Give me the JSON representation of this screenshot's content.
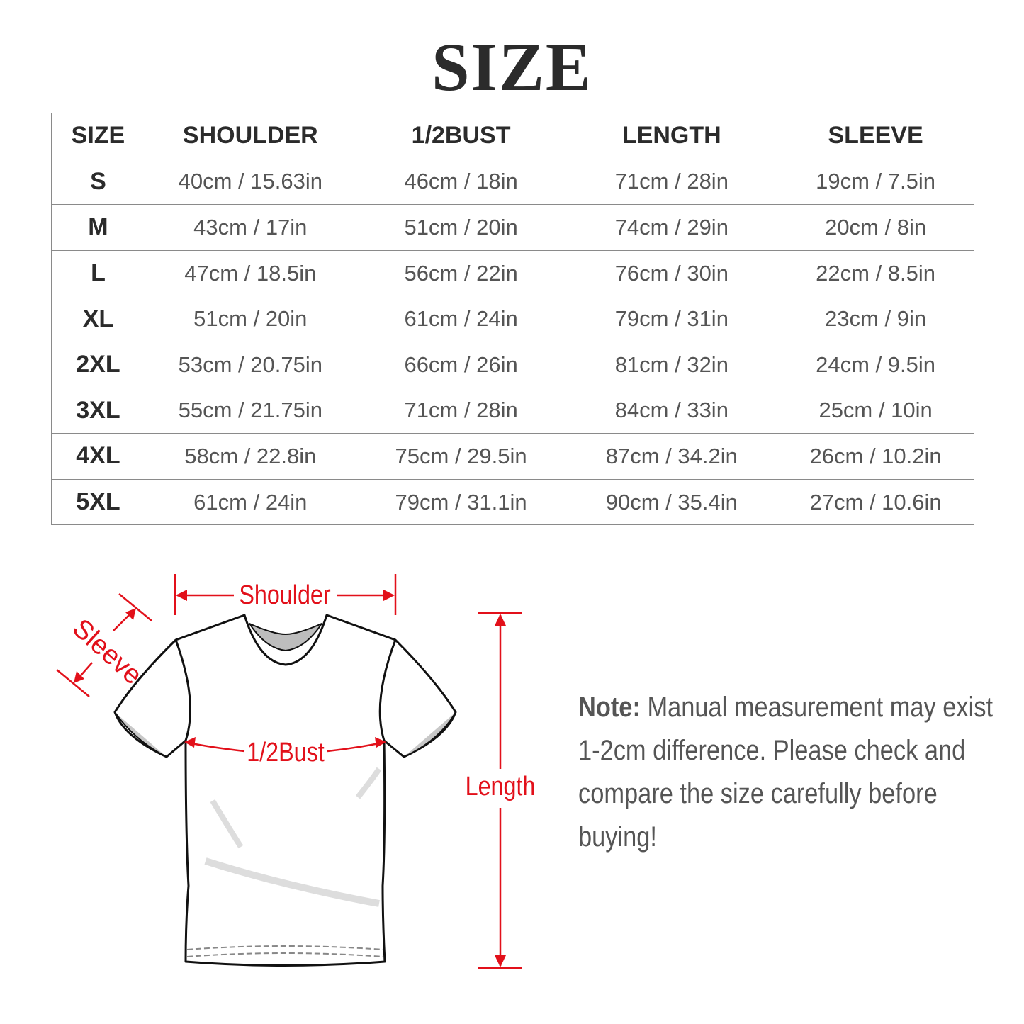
{
  "title": "SIZE",
  "table": {
    "headers": [
      "SIZE",
      "SHOULDER",
      "1/2BUST",
      "LENGTH",
      "SLEEVE"
    ],
    "rows": [
      [
        "S",
        "40cm / 15.63in",
        "46cm / 18in",
        "71cm / 28in",
        "19cm / 7.5in"
      ],
      [
        "M",
        "43cm / 17in",
        "51cm / 20in",
        "74cm / 29in",
        "20cm / 8in"
      ],
      [
        "L",
        "47cm / 18.5in",
        "56cm / 22in",
        "76cm / 30in",
        "22cm / 8.5in"
      ],
      [
        "XL",
        "51cm / 20in",
        "61cm / 24in",
        "79cm / 31in",
        "23cm / 9in"
      ],
      [
        "2XL",
        "53cm / 20.75in",
        "66cm / 26in",
        "81cm / 32in",
        "24cm / 9.5in"
      ],
      [
        "3XL",
        "55cm / 21.75in",
        "71cm / 28in",
        "84cm / 33in",
        "25cm / 10in"
      ],
      [
        "4XL",
        "58cm / 22.8in",
        "75cm / 29.5in",
        "87cm / 34.2in",
        "26cm / 10.2in"
      ],
      [
        "5XL",
        "61cm / 24in",
        "79cm / 31.1in",
        "90cm / 35.4in",
        "27cm / 10.6in"
      ]
    ]
  },
  "diagram": {
    "shoulder_label": "Shoulder",
    "sleeve_label": "Sleeve",
    "bust_label": "1/2Bust",
    "length_label": "Length",
    "accent_color": "#e2101a"
  },
  "note": {
    "label": "Note:",
    "text": "Manual measurement may exist 1-2cm difference. Please check and compare the size carefully before buying!"
  }
}
